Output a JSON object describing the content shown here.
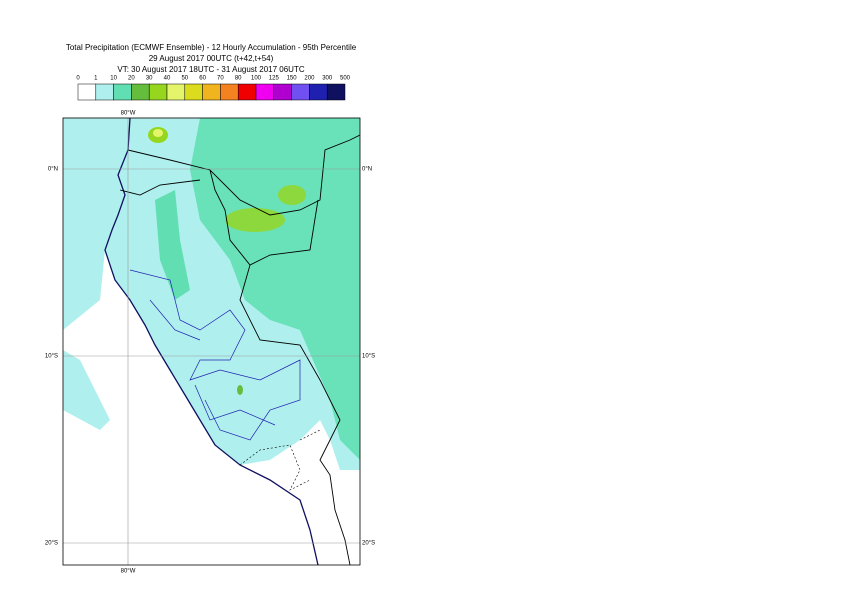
{
  "header": {
    "lines": [
      "Total Precipitation (ECMWF Ensemble) - 12 Hourly Accumulation - 95th Percentile",
      "29 August 2017 00UTC (t+42,t+54)",
      "VT: 30 August 2017 18UTC - 31 August 2017 06UTC"
    ]
  },
  "legend": {
    "labels": [
      "0",
      "1",
      "10",
      "20",
      "30",
      "40",
      "50",
      "60",
      "70",
      "80",
      "100",
      "125",
      "150",
      "200",
      "300",
      "500"
    ],
    "colors": [
      "#ffffff",
      "#aff0ee",
      "#62dfb2",
      "#64bd3c",
      "#96d61e",
      "#e4f56c",
      "#dcdc1e",
      "#f0b41e",
      "#f58220",
      "#f00000",
      "#f000f0",
      "#b000d0",
      "#7050f0",
      "#2020b0",
      "#101060"
    ]
  },
  "map": {
    "lat_labels": [
      "0°N",
      "10°S",
      "20°S"
    ],
    "lon_labels": [
      "80°W"
    ]
  }
}
